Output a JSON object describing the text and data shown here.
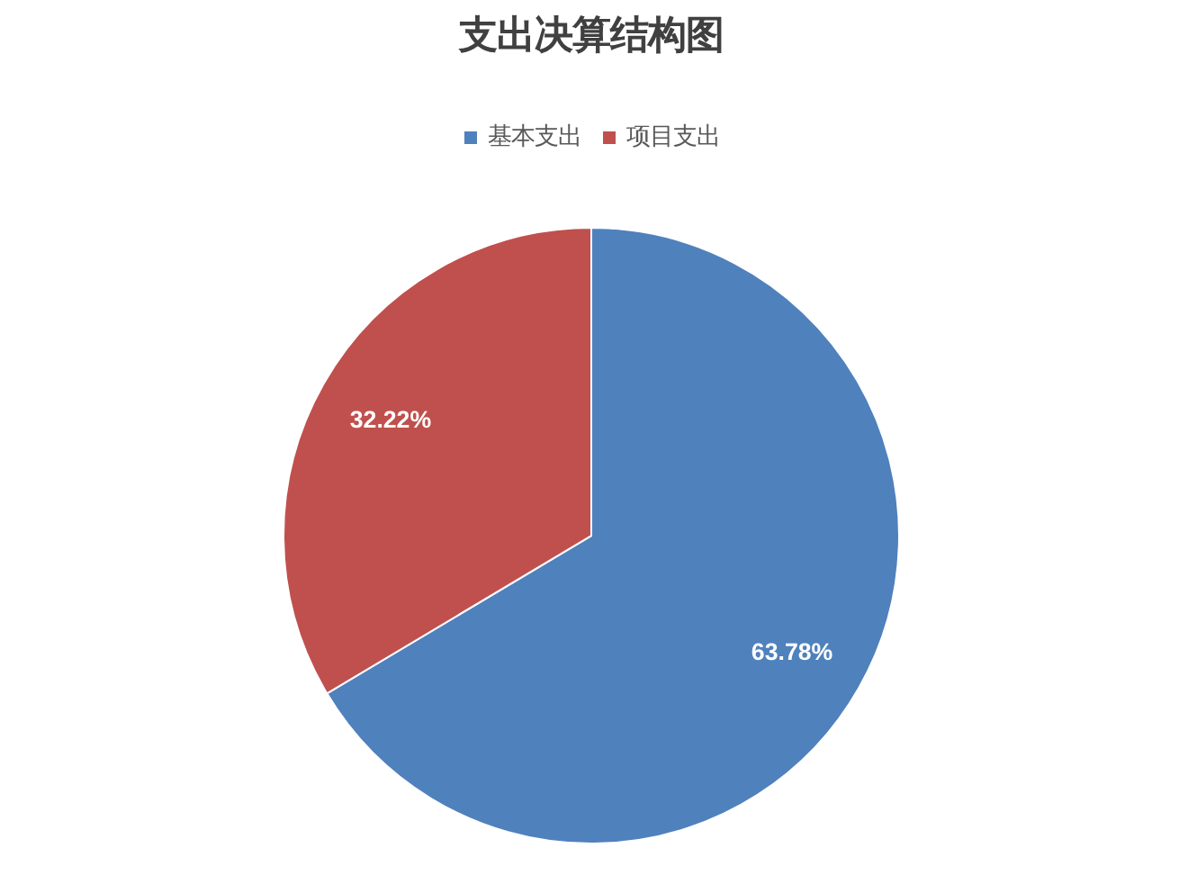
{
  "chart_data": {
    "type": "pie",
    "title": "支出决算结构图",
    "categories": [
      "基本支出",
      "项目支出"
    ],
    "values": [
      63.78,
      32.22
    ],
    "colors": [
      "#4f81bd",
      "#c0504d"
    ],
    "value_labels": [
      "63.78%",
      "32.22%"
    ],
    "legend": "top"
  }
}
